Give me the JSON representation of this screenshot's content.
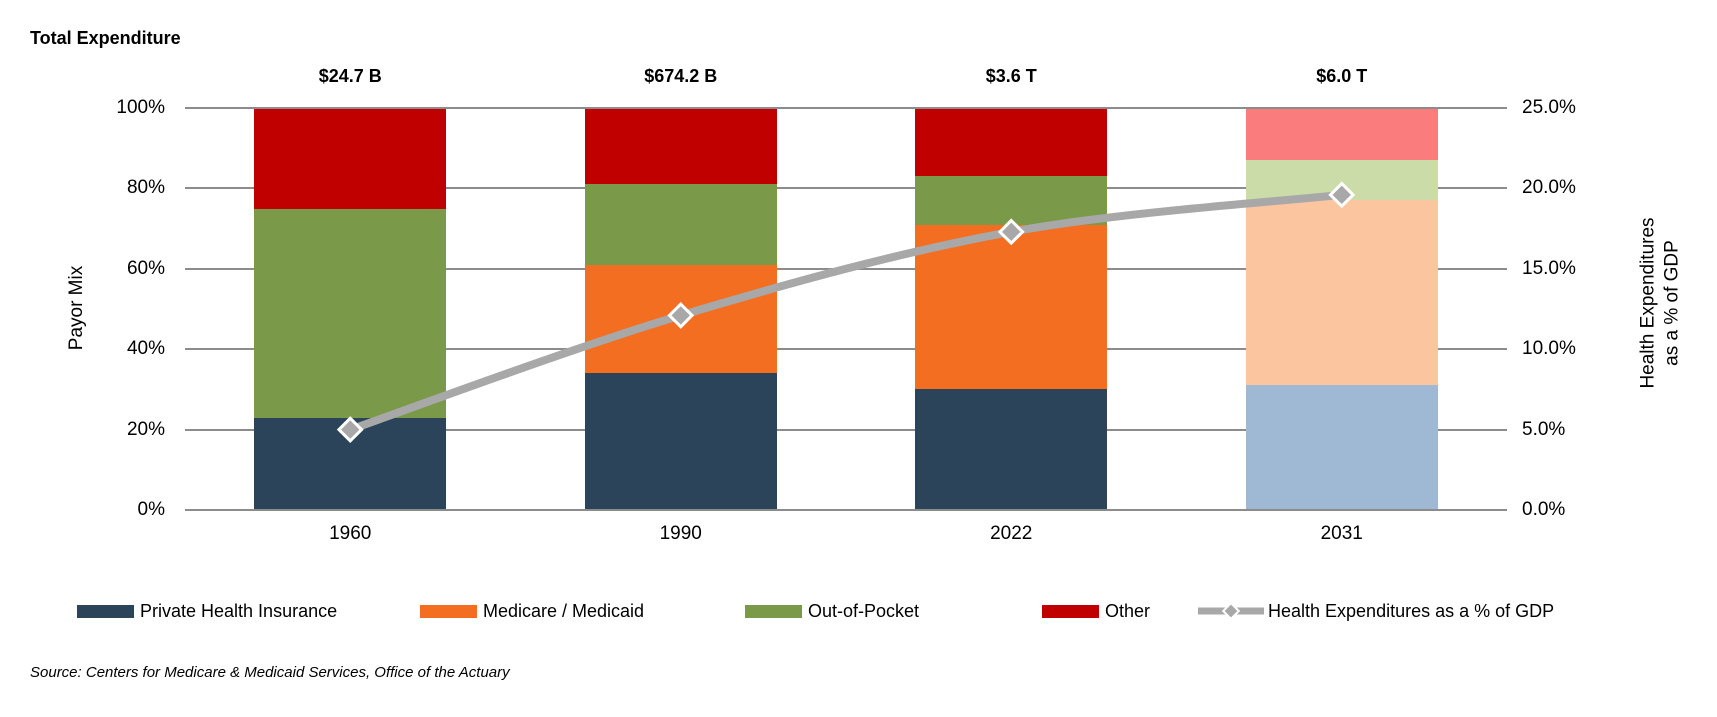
{
  "title": "Total Expenditure",
  "source": "Source: Centers for Medicare & Medicaid Services, Office of the Actuary",
  "chart_data": {
    "type": "bar",
    "subtype": "stacked-100%-bars-with-line-overlay",
    "categories": [
      "1960",
      "1990",
      "2022",
      "2031"
    ],
    "projected": [
      false,
      false,
      false,
      true
    ],
    "total_labels": [
      "$24.7 B",
      "$674.2 B",
      "$3.6 T",
      "$6.0 T"
    ],
    "series": [
      {
        "name": "Private Health Insurance",
        "values": [
          23,
          34,
          30,
          31
        ],
        "color": "#2B4459",
        "color_projected": "#9FB9D4"
      },
      {
        "name": "Medicare / Medicaid",
        "values": [
          0,
          27,
          41,
          46
        ],
        "color": "#F36E21",
        "color_projected": "#FBC5A0"
      },
      {
        "name": "Out-of-Pocket",
        "values": [
          52,
          20,
          12,
          10
        ],
        "color": "#7A9A49",
        "color_projected": "#CCDCA8"
      },
      {
        "name": "Other",
        "values": [
          25,
          19,
          17,
          13
        ],
        "color": "#C00000",
        "color_projected": "#FB7C7C"
      }
    ],
    "line_series": {
      "name": "Health Expenditures as a % of GDP",
      "values": [
        5.0,
        12.1,
        17.3,
        19.6
      ],
      "color": "#A8A8A8",
      "axis": "right"
    },
    "left_axis": {
      "title": "Payor Mix",
      "min": 0,
      "max": 100,
      "ticks": [
        "0%",
        "20%",
        "40%",
        "60%",
        "80%",
        "100%"
      ]
    },
    "right_axis": {
      "title": [
        "Health Expenditures",
        "as a % of GDP"
      ],
      "min": 0,
      "max": 25,
      "ticks": [
        "0.0%",
        "5.0%",
        "10.0%",
        "15.0%",
        "20.0%",
        "25.0%"
      ]
    },
    "grid": true,
    "gridline_color": "#8C8C8C",
    "legend_position": "bottom"
  }
}
